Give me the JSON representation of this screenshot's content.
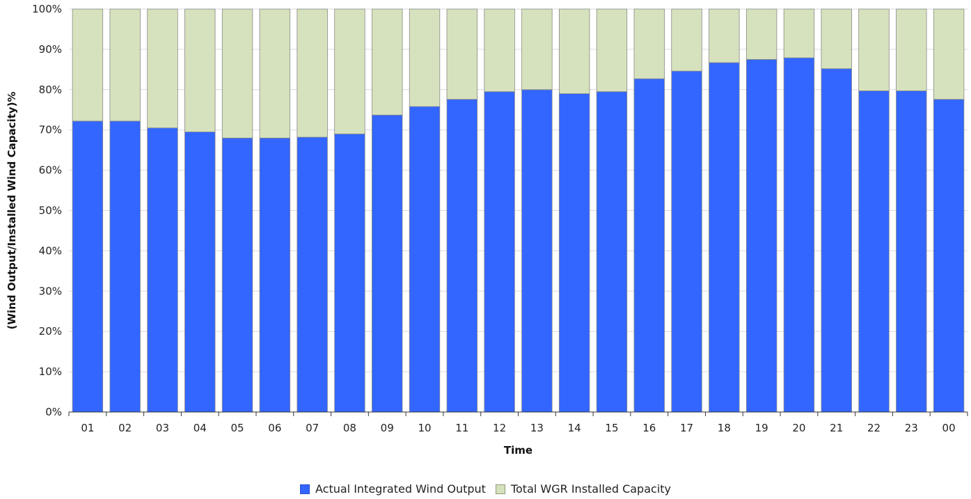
{
  "chart_data": {
    "type": "bar",
    "stacked": true,
    "normalized": true,
    "title": "",
    "xlabel": "Time",
    "ylabel": "(Wind Output/Installed Wind Capacity)%",
    "ylim": [
      0,
      100
    ],
    "yticks": [
      "0%",
      "10%",
      "20%",
      "30%",
      "40%",
      "50%",
      "60%",
      "70%",
      "80%",
      "90%",
      "100%"
    ],
    "grid": true,
    "legend_position": "bottom",
    "categories": [
      "01",
      "02",
      "03",
      "04",
      "05",
      "06",
      "07",
      "08",
      "09",
      "10",
      "11",
      "12",
      "13",
      "14",
      "15",
      "16",
      "17",
      "18",
      "19",
      "20",
      "21",
      "22",
      "23",
      "00"
    ],
    "series": [
      {
        "name": "Actual Integrated Wind Output",
        "color": "#3366ff",
        "values": [
          72.2,
          72.2,
          70.5,
          69.5,
          68.0,
          68.0,
          68.2,
          69.0,
          73.7,
          75.8,
          77.6,
          79.5,
          80.0,
          79.0,
          79.5,
          82.7,
          84.6,
          86.7,
          87.5,
          87.9,
          85.2,
          79.7,
          79.7,
          77.6
        ]
      },
      {
        "name": "Total WGR Installed Capacity",
        "color": "#d6e2bd",
        "values": [
          27.8,
          27.8,
          29.5,
          30.5,
          32.0,
          32.0,
          31.8,
          31.0,
          26.3,
          24.2,
          22.4,
          20.5,
          20.0,
          21.0,
          20.5,
          17.3,
          15.4,
          13.3,
          12.5,
          12.1,
          14.8,
          20.3,
          20.3,
          22.4
        ]
      }
    ]
  }
}
